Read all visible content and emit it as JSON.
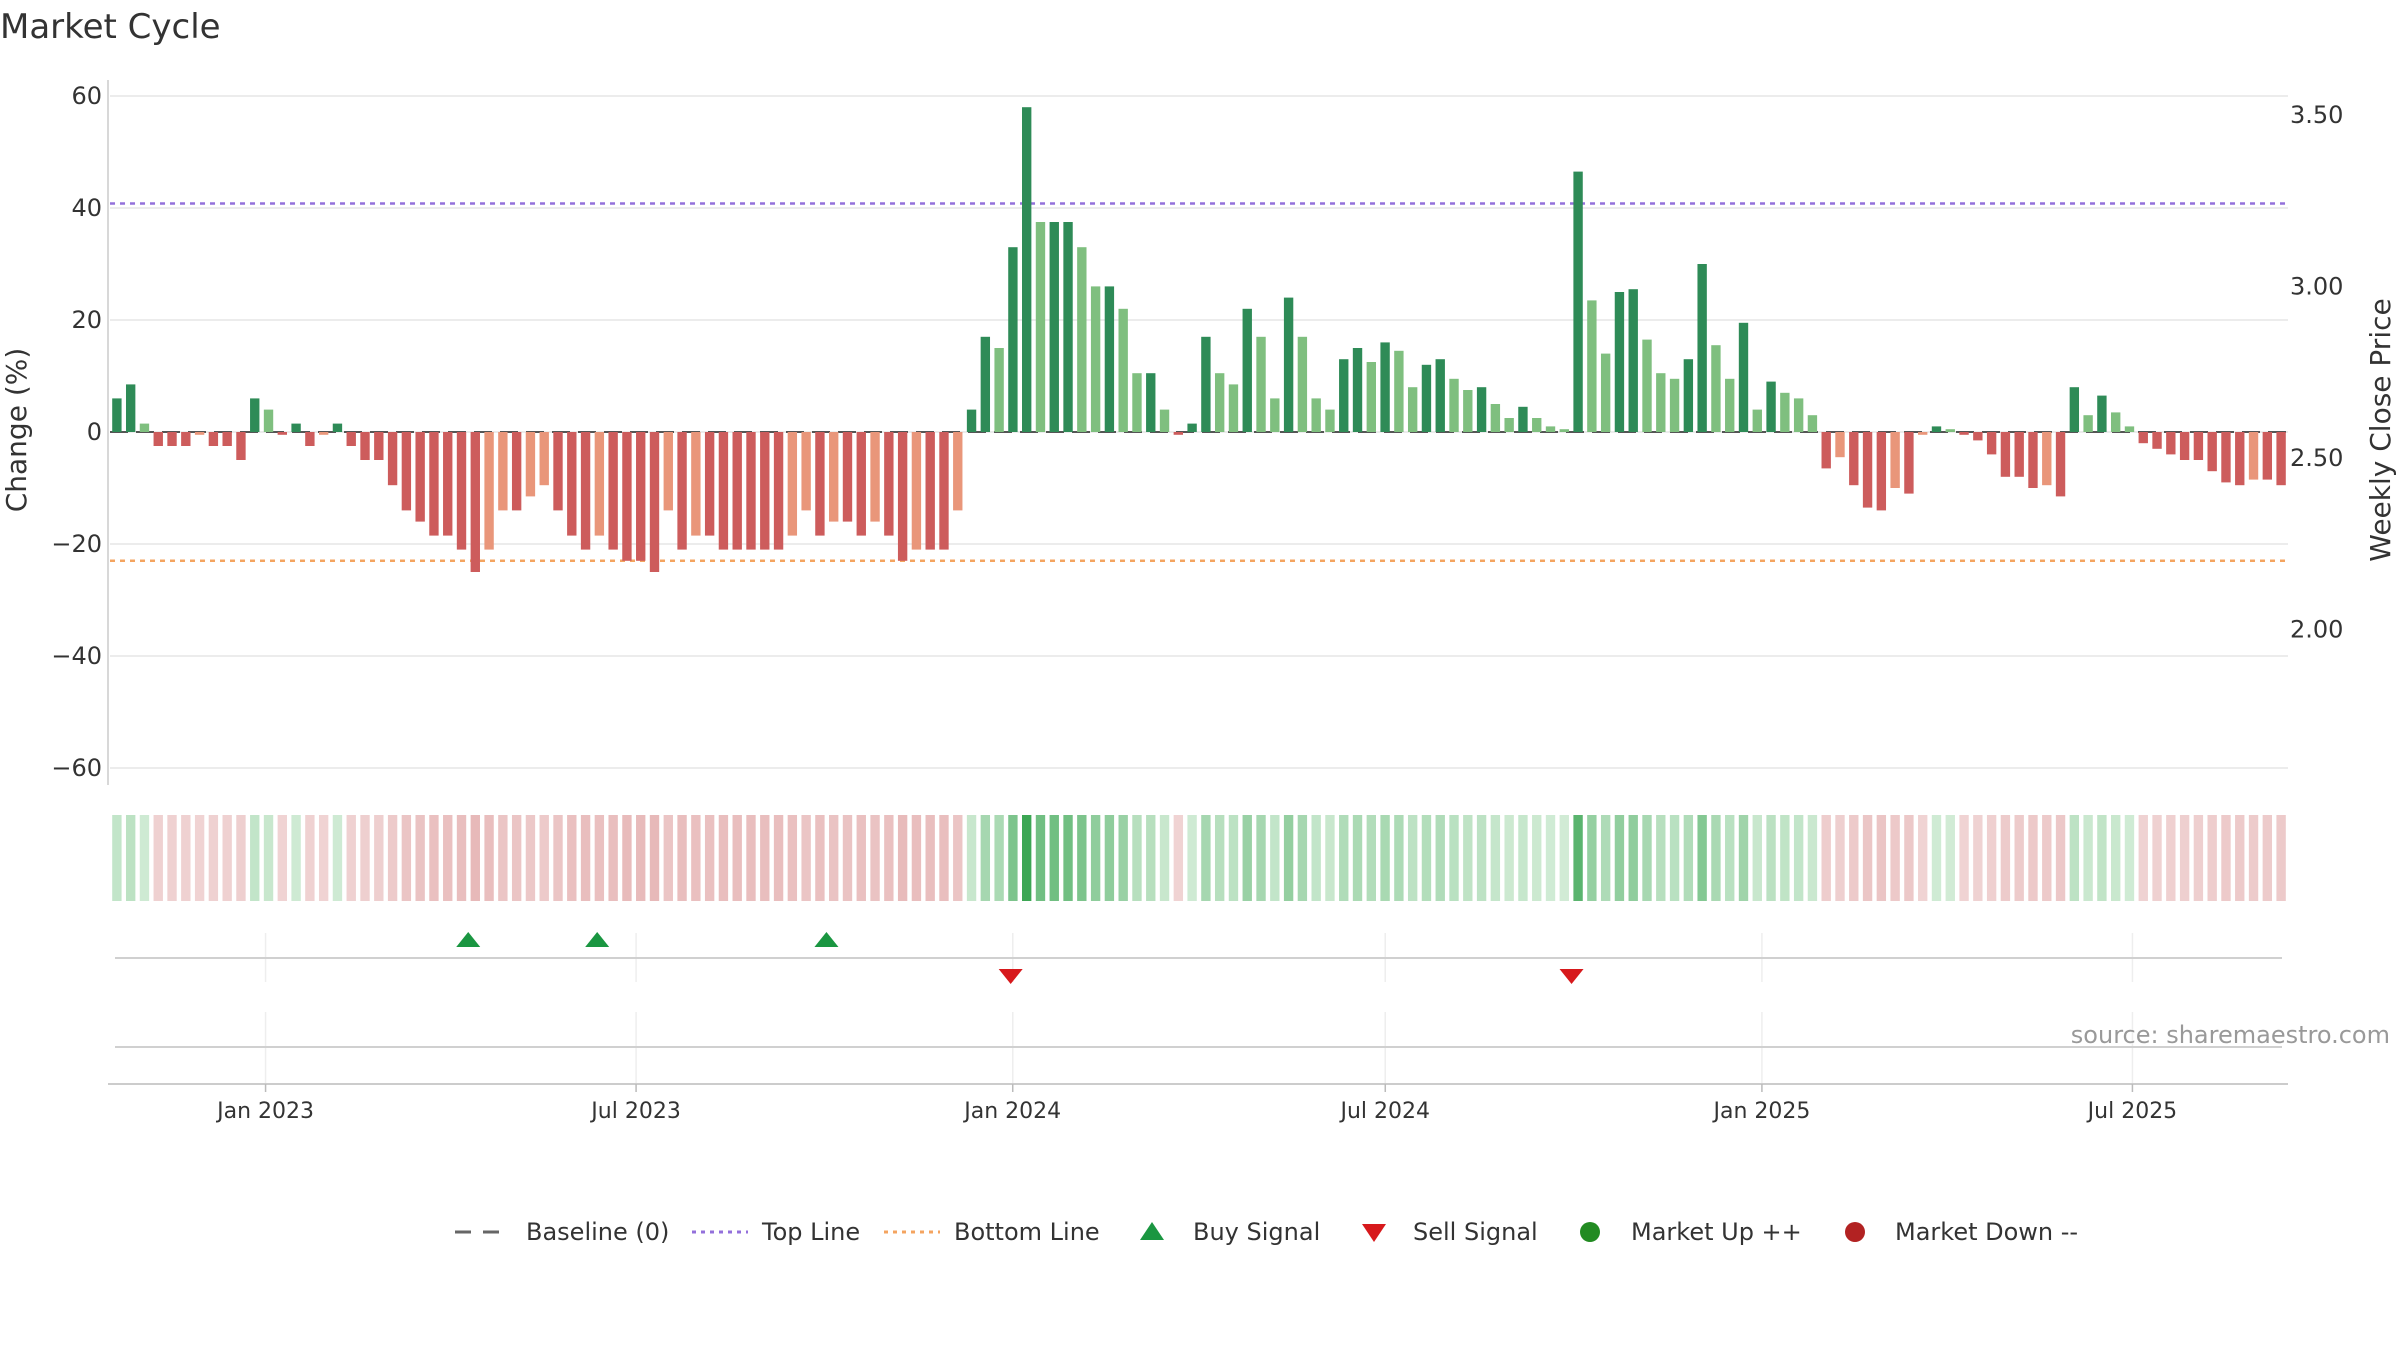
{
  "chart_data": {
    "type": "bar",
    "title": "Market Cycle",
    "ylabel_left": "Change (%)",
    "ylabel_right": "Weekly Close Price",
    "ylim_left": [
      -63,
      63
    ],
    "ylim_right": [
      1.5,
      3.55
    ],
    "yticks_left": [
      "60",
      "40",
      "20",
      "0",
      "−20",
      "−40",
      "−60"
    ],
    "yticks_left_values": [
      60,
      40,
      20,
      0,
      -20,
      -40,
      -60
    ],
    "yticks_right": [
      "3.50",
      "3.00",
      "2.50",
      "2.00"
    ],
    "yticks_right_values": [
      3.5,
      3.0,
      2.5,
      2.0
    ],
    "x_start": "2022-10-17",
    "x_end": "2025-09-15",
    "xticks": [
      "Jan 2023",
      "Jul 2023",
      "Jan 2024",
      "Jul 2024",
      "Jan 2025",
      "Jul 2025"
    ],
    "xticks_dates": [
      "2023-01-01",
      "2023-07-01",
      "2024-01-01",
      "2024-07-01",
      "2025-01-01",
      "2025-07-01"
    ],
    "top_line": 40.8,
    "bottom_line": -23,
    "values": [
      6,
      8.5,
      1.5,
      -2.5,
      -2.5,
      -2.5,
      -0.5,
      -2.5,
      -2.5,
      -5,
      6,
      4,
      -0.5,
      1.5,
      -2.5,
      -0.5,
      1.5,
      -2.5,
      -5,
      -5,
      -9.5,
      -14,
      -16,
      -18.5,
      -18.5,
      -21,
      -25,
      -21,
      -14,
      -14,
      -11.5,
      -9.5,
      -14,
      -18.5,
      -21,
      -18.5,
      -21,
      -23,
      -23,
      -25,
      -14,
      -21,
      -18.5,
      -18.5,
      -21,
      -21,
      -21,
      -21,
      -21,
      -18.5,
      -14,
      -18.5,
      -16,
      -16,
      -18.5,
      -16,
      -18.5,
      -23,
      -21,
      -21,
      -21,
      -14,
      4,
      17,
      15,
      33,
      58,
      37.5,
      37.5,
      37.5,
      33,
      26,
      26,
      22,
      10.5,
      10.5,
      4,
      -0.5,
      1.5,
      17,
      10.5,
      8.5,
      22,
      17,
      6,
      24,
      17,
      6,
      4,
      13,
      15,
      12.5,
      16,
      14.5,
      8,
      12,
      13,
      9.5,
      7.5,
      8,
      5,
      2.5,
      4.5,
      2.5,
      1,
      0.5,
      46.5,
      23.5,
      14,
      25,
      25.5,
      16.5,
      10.5,
      9.5,
      13,
      30,
      15.5,
      9.5,
      19.5,
      4,
      9,
      7,
      6,
      3,
      -6.5,
      -4.5,
      -9.5,
      -13.5,
      -14,
      -10,
      -11,
      -0.5,
      1,
      0.5,
      -0.5,
      -1.5,
      -4,
      -8,
      -8,
      -10,
      -9.5,
      -11.5,
      8,
      3,
      6.5,
      3.5,
      1,
      -2,
      -3,
      -4,
      -5,
      -5,
      -7,
      -9,
      -9.5,
      -8.5,
      -8.5,
      -9.5
    ],
    "buy_signals": [
      "2023-04-10",
      "2023-06-12",
      "2023-10-02"
    ],
    "sell_signals": [
      "2023-12-31",
      "2024-09-30"
    ],
    "legend": [
      "Baseline (0)",
      "Top Line",
      "Bottom Line",
      "Buy Signal",
      "Sell Signal",
      "Market Up ++",
      "Market Down --"
    ],
    "source": "source: sharemaestro.com",
    "colors": {
      "up_strong": "#2e8b57",
      "up_light": "#7fbf7f",
      "down_strong": "#cd5c5c",
      "down_light": "#e9967a",
      "top_line": "#9370db",
      "bottom_line": "#f4a460",
      "buy": "#1a9641",
      "sell": "#d7191c",
      "market_up": "#228b22",
      "market_down": "#b22222"
    }
  }
}
